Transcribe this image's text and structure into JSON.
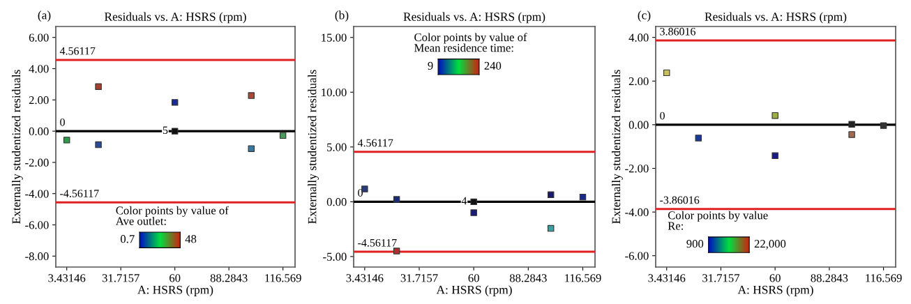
{
  "chart_data": [
    {
      "type": "scatter",
      "title": "Residuals vs. A: HSRS (rpm)",
      "xlabel": "A: HSRS (rpm)",
      "ylabel": "Externally studentized residuals",
      "x": [
        3.43146,
        20,
        20,
        60,
        60,
        100,
        100,
        116.569
      ],
      "values": [
        -0.57,
        2.85,
        -0.87,
        1.84,
        0,
        2.28,
        -1.12,
        -0.28
      ],
      "colors": [
        "#2e9a4a",
        "#a8402e",
        "#2a4a9a",
        "#1a2a9a",
        "#111111",
        "#a84a38",
        "#3a7aa0",
        "#4a9a5a"
      ],
      "marker": "square",
      "grid": false,
      "legend": false,
      "xlim": [
        -2.3,
        122.9
      ],
      "xticks": [
        3.43146,
        31.7157,
        60,
        88.2843,
        116.569
      ],
      "ylim": [
        -8.7,
        6.7
      ],
      "yticks": [
        {
          "value": 6,
          "label": "6.00"
        },
        {
          "value": 4,
          "label": "4.00"
        },
        {
          "value": 2,
          "label": "2.00"
        },
        {
          "value": 0,
          "label": "0.00"
        },
        {
          "value": -2,
          "label": "-2.00"
        },
        {
          "value": -4,
          "label": "-4.00"
        },
        {
          "value": -6,
          "label": "-6.00"
        },
        {
          "value": -8,
          "label": "-8.00"
        }
      ],
      "ref_lines": [
        {
          "axis": "y",
          "value": 4.56117,
          "label": "4.56117",
          "color": "#e02020"
        },
        {
          "axis": "y",
          "value": 0,
          "label": "0",
          "color": "#000000"
        },
        {
          "axis": "y",
          "value": -4.56117,
          "label": "-4.56117",
          "color": "#e02020"
        }
      ],
      "annotations": [
        "(a)",
        {
          "text": "5",
          "x": 60,
          "y": 0
        },
        "Color points by value of\nAve outlet:",
        "0.7",
        "48"
      ]
    },
    {
      "type": "scatter",
      "title": "Residuals vs. A: HSRS (rpm)",
      "xlabel": "A: HSRS (rpm)",
      "ylabel": "Externally studentized residuals",
      "x": [
        3.43146,
        20,
        20,
        60,
        60,
        100,
        100,
        116.569
      ],
      "values": [
        1.17,
        0.21,
        -4.5,
        0,
        -1.0,
        0.64,
        -2.43,
        0.43
      ],
      "colors": [
        "#2a3a7a",
        "#1a2a7a",
        "#b03030",
        "#111111",
        "#1a1a7a",
        "#1a1a6a",
        "#3aa0a0",
        "#1a2a8a"
      ],
      "marker": "square",
      "grid": false,
      "legend": false,
      "xlim": [
        -2.3,
        122.9
      ],
      "xticks": [
        3.43146,
        31.7157,
        60,
        88.2843,
        116.569
      ],
      "ylim": [
        -5.96,
        16.0
      ],
      "yticks": [
        {
          "value": 15,
          "label": "15.00"
        },
        {
          "value": 10,
          "label": "10.00"
        },
        {
          "value": 5,
          "label": "5.00"
        },
        {
          "value": 0,
          "label": "0.00"
        },
        {
          "value": -5,
          "label": "-5.00"
        }
      ],
      "ref_lines": [
        {
          "axis": "y",
          "value": 4.56117,
          "label": "4.56117",
          "color": "#e02020"
        },
        {
          "axis": "y",
          "value": 0,
          "label": "0",
          "color": "#000000"
        },
        {
          "axis": "y",
          "value": -4.56117,
          "label": "-4.56117",
          "color": "#e02020"
        }
      ],
      "annotations": [
        "(b)",
        {
          "text": "4",
          "x": 60,
          "y": 0
        },
        "Color points by value of\nMean residence time:",
        "9",
        "240"
      ]
    },
    {
      "type": "scatter",
      "title": "Residuals vs. A: HSRS (rpm)",
      "xlabel": "A: HSRS (rpm)",
      "ylabel": "Externally studentized residuals",
      "x": [
        3.43146,
        20,
        60,
        60,
        100,
        100,
        116.569
      ],
      "values": [
        2.38,
        -0.61,
        0.42,
        -1.42,
        0.02,
        -0.45,
        -0.04
      ],
      "colors": [
        "#c8c060",
        "#1a3a9a",
        "#a0b040",
        "#1a1a8a",
        "#222222",
        "#a06a50",
        "#333333"
      ],
      "marker": "square",
      "grid": false,
      "legend": false,
      "xlim": [
        -2.3,
        122.9
      ],
      "xticks": [
        3.43146,
        31.7157,
        60,
        88.2843,
        116.569
      ],
      "ylim": [
        -6.52,
        4.5
      ],
      "yticks": [
        {
          "value": 4,
          "label": "4.00"
        },
        {
          "value": 2,
          "label": "2.00"
        },
        {
          "value": 0,
          "label": "0.00"
        },
        {
          "value": -2,
          "label": "-2.00"
        },
        {
          "value": -4,
          "label": "-4.00"
        },
        {
          "value": -6,
          "label": "-6.00"
        }
      ],
      "ref_lines": [
        {
          "axis": "y",
          "value": 3.86016,
          "label": "3.86016",
          "color": "#e02020"
        },
        {
          "axis": "y",
          "value": 0,
          "label": "0",
          "color": "#000000"
        },
        {
          "axis": "y",
          "value": -3.86016,
          "label": "-3.86016",
          "color": "#e02020"
        }
      ],
      "annotations": [
        "(c)",
        "Color points by value\nRe:",
        "900",
        "22,000"
      ]
    }
  ]
}
